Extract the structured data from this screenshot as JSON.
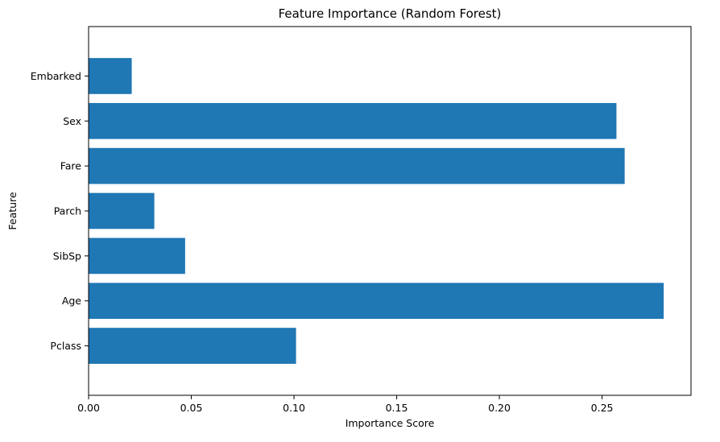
{
  "chart_data": {
    "type": "bar",
    "orientation": "horizontal",
    "title": "Feature Importance (Random Forest)",
    "xlabel": "Importance Score",
    "ylabel": "Feature",
    "categories": [
      "Pclass",
      "Age",
      "SibSp",
      "Parch",
      "Fare",
      "Sex",
      "Embarked"
    ],
    "values": [
      0.101,
      0.28,
      0.047,
      0.032,
      0.261,
      0.257,
      0.021
    ],
    "xlim": [
      0,
      0.2933
    ],
    "xticks": [
      0.0,
      0.05,
      0.1,
      0.15,
      0.2,
      0.25
    ],
    "xtick_labels": [
      "0.00",
      "0.05",
      "0.10",
      "0.15",
      "0.20",
      "0.25"
    ],
    "bar_color": "#1f77b4",
    "grid": false,
    "legend": "none"
  }
}
